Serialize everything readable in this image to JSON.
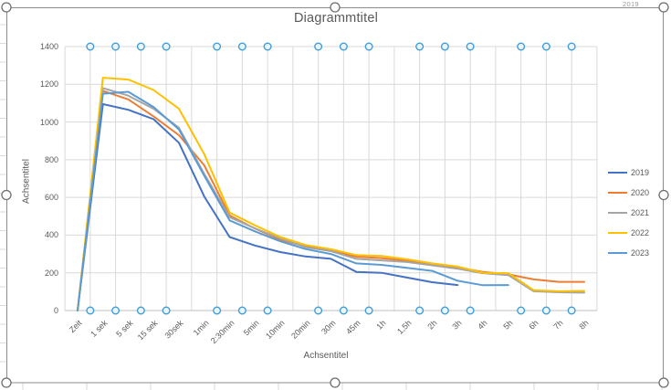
{
  "worksheet": {
    "cell_text": "2019",
    "gridline_color": "#d9d9d9"
  },
  "selection": {
    "chart_selected": true,
    "border_color": "#8c8c8c",
    "handle_fill": "#ffffff",
    "handle_stroke": "#6e6e6e",
    "gridline_handle_indices": [
      1,
      2,
      3,
      4,
      6,
      7,
      8,
      10,
      11,
      12,
      14,
      15,
      16,
      18,
      19,
      20
    ],
    "gridline_handle_stroke": "#3e9cd9",
    "gridline_handle_fill": "#eaf4fb"
  },
  "colors": {
    "plot_gridline": "#d9d9d9",
    "axis_line": "#bfbfbf",
    "text": "#595959"
  },
  "chart_data": {
    "type": "line",
    "title": "Diagrammtitel",
    "xlabel": "Achsentitel",
    "ylabel": "Achsentitel",
    "ylim": [
      0,
      1400
    ],
    "y_tick_step": 200,
    "y_tick_labels": [
      "0",
      "200",
      "400",
      "600",
      "800",
      "1000",
      "1200",
      "1400"
    ],
    "grid": true,
    "legend_position": "right",
    "categories": [
      "Zeit",
      "1 sek",
      "5 sek",
      "15 sek",
      "30sek",
      "1min",
      "2:30min",
      "5min",
      "10min",
      "20min",
      "30m",
      "45m",
      "1h",
      "1,5h",
      "2h",
      "3h",
      "4h",
      "5h",
      "6h",
      "7h",
      "8h"
    ],
    "series": [
      {
        "name": "2019",
        "color": "#4472C4",
        "values": [
          0,
          1095,
          1065,
          1015,
          890,
          605,
          390,
          345,
          310,
          287,
          274,
          205,
          200,
          175,
          150,
          135,
          null,
          null,
          null,
          null,
          null
        ]
      },
      {
        "name": "2020",
        "color": "#ED7D31",
        "values": [
          0,
          1165,
          1120,
          1030,
          930,
          770,
          505,
          435,
          375,
          340,
          318,
          286,
          278,
          264,
          245,
          228,
          205,
          192,
          165,
          152,
          152
        ]
      },
      {
        "name": "2021",
        "color": "#A5A5A5",
        "values": [
          0,
          1180,
          1140,
          1070,
          970,
          725,
          495,
          436,
          382,
          336,
          315,
          274,
          266,
          257,
          240,
          222,
          198,
          188,
          102,
          97,
          95
        ]
      },
      {
        "name": "2022",
        "color": "#FFC000",
        "values": [
          0,
          1235,
          1225,
          1170,
          1070,
          830,
          520,
          452,
          390,
          348,
          325,
          294,
          289,
          272,
          250,
          233,
          200,
          198,
          108,
          102,
          104
        ]
      },
      {
        "name": "2023",
        "color": "#5B9BD5",
        "values": [
          0,
          1150,
          1160,
          1080,
          960,
          715,
          478,
          420,
          367,
          326,
          300,
          250,
          242,
          226,
          210,
          158,
          134,
          135,
          null,
          null,
          null
        ]
      }
    ]
  }
}
